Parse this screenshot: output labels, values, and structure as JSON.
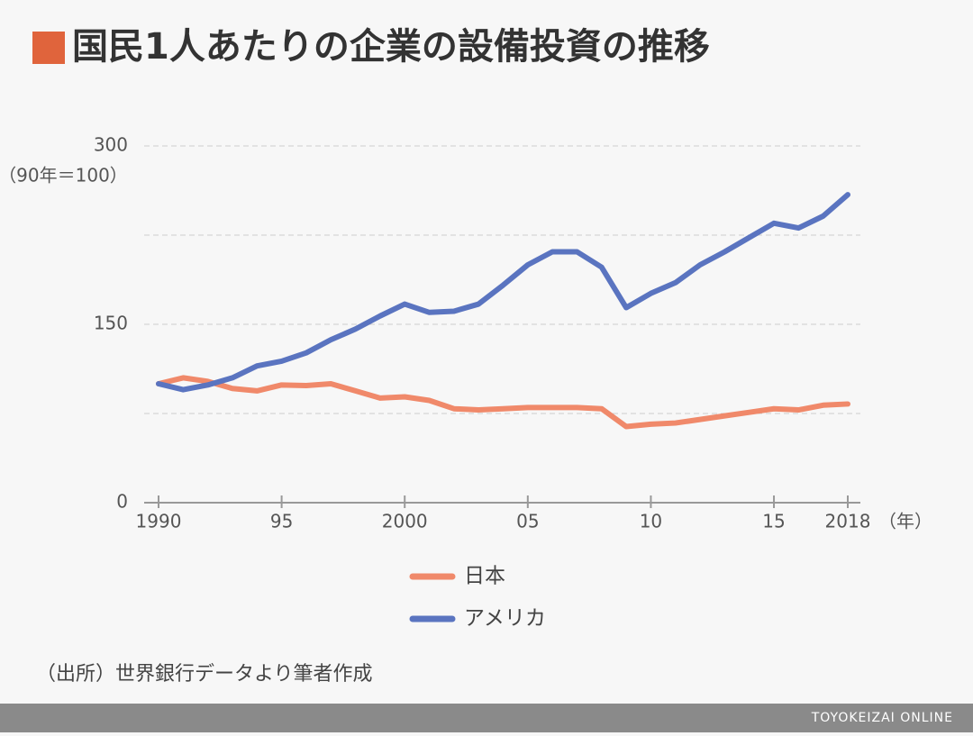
{
  "chart_data": {
    "type": "line",
    "title": "国民1人あたりの企業の設備投資の推移",
    "y_unit_label": "（90年＝100）",
    "x_unit_label": "（年）",
    "source": "（出所）世界銀行データより筆者作成",
    "footer": "TOYOKEIZAI ONLINE",
    "title_marker_color": "#e0643c",
    "x": [
      1990,
      1991,
      1992,
      1993,
      1994,
      1995,
      1996,
      1997,
      1998,
      1999,
      2000,
      2001,
      2002,
      2003,
      2004,
      2005,
      2006,
      2007,
      2008,
      2009,
      2010,
      2011,
      2012,
      2013,
      2014,
      2015,
      2016,
      2017,
      2018
    ],
    "series": [
      {
        "name": "日本",
        "color": "#f0896a",
        "values": [
          100,
          105,
          102,
          96,
          94,
          99,
          98.5,
          100,
          94,
          88,
          89,
          86,
          79,
          78,
          79,
          80,
          80,
          80,
          79,
          64,
          66,
          67,
          70,
          73,
          76,
          79,
          78,
          82,
          83
        ]
      },
      {
        "name": "アメリカ",
        "color": "#5a74c0",
        "values": [
          100,
          95,
          99,
          105,
          115,
          119,
          126,
          137,
          146,
          157,
          167,
          160,
          161,
          167,
          183,
          200,
          211,
          211,
          198,
          164,
          176,
          185,
          200,
          211,
          223,
          235,
          231,
          241,
          259
        ]
      }
    ],
    "xlim": [
      1990,
      2018
    ],
    "xticks": [
      1990,
      {
        "value": 1995,
        "label": "95"
      },
      2000,
      {
        "value": 2005,
        "label": "05"
      },
      {
        "value": 2010,
        "label": "10"
      },
      {
        "value": 2015,
        "label": "15"
      },
      2018
    ],
    "ylim": [
      0,
      300
    ],
    "yticks": [
      0,
      150,
      300
    ],
    "y_minor_gridlines": [
      75,
      225
    ],
    "grid": true
  }
}
